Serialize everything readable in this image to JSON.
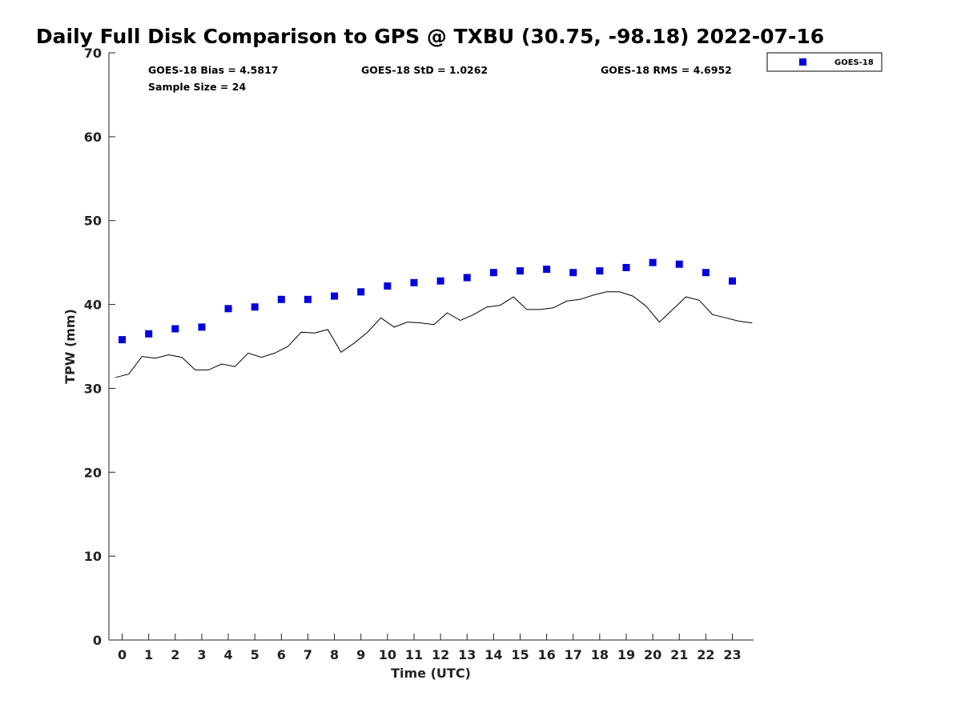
{
  "chart_data": {
    "type": "scatter",
    "title": "Daily Full Disk Comparison to GPS @ TXBU (30.75, -98.18) 2022-07-16",
    "xlabel": "Time (UTC)",
    "ylabel": "TPW (mm)",
    "xlim": [
      -0.5,
      23.8
    ],
    "ylim": [
      0,
      70
    ],
    "x_ticks": [
      "0",
      "1",
      "2",
      "3",
      "4",
      "5",
      "6",
      "7",
      "8",
      "9",
      "10",
      "11",
      "12",
      "13",
      "14",
      "15",
      "16",
      "17",
      "18",
      "19",
      "20",
      "21",
      "22",
      "23"
    ],
    "y_ticks": [
      "0",
      "10",
      "20",
      "30",
      "40",
      "50",
      "60",
      "70"
    ],
    "grid": false,
    "legend_position": "outside-top-right",
    "stats": {
      "bias": "GOES-18 Bias = 4.5817",
      "std": "GOES-18 StD = 1.0262",
      "rms": "GOES-18 RMS = 4.6952",
      "sample": "Sample Size = 24"
    },
    "series": [
      {
        "name": "GOES-18",
        "kind": "scatter",
        "color": "#0000dd",
        "x": [
          0,
          1,
          2,
          3,
          4,
          5,
          6,
          7,
          8,
          9,
          10,
          11,
          12,
          13,
          14,
          15,
          16,
          17,
          18,
          19,
          20,
          21,
          22,
          23
        ],
        "values": [
          35.8,
          36.5,
          37.1,
          37.3,
          39.5,
          39.7,
          40.6,
          40.6,
          41.0,
          41.5,
          42.2,
          42.6,
          42.8,
          43.2,
          43.8,
          44.0,
          44.2,
          43.8,
          44.0,
          44.4,
          45.0,
          44.8,
          43.8,
          42.8
        ]
      },
      {
        "kind": "line",
        "color": "#000000",
        "x": [
          -0.25,
          0.25,
          0.75,
          1.25,
          1.75,
          2.25,
          2.75,
          3.25,
          3.75,
          4.25,
          4.75,
          5.25,
          5.75,
          6.25,
          6.75,
          7.25,
          7.75,
          8.25,
          8.75,
          9.25,
          9.75,
          10.25,
          10.75,
          11.25,
          11.75,
          12.25,
          12.75,
          13.25,
          13.75,
          14.25,
          14.75,
          15.25,
          15.75,
          16.25,
          16.75,
          17.25,
          17.75,
          18.25,
          18.75,
          19.25,
          19.75,
          20.25,
          20.75,
          21.25,
          21.75,
          22.25,
          22.75,
          23.25,
          23.75
        ],
        "values": [
          31.3,
          31.7,
          33.8,
          33.6,
          34.0,
          33.7,
          32.2,
          32.2,
          32.9,
          32.6,
          34.2,
          33.7,
          34.2,
          35.0,
          36.7,
          36.6,
          37.0,
          34.3,
          35.4,
          36.7,
          38.4,
          37.3,
          37.9,
          37.8,
          37.6,
          39.0,
          38.1,
          38.8,
          39.7,
          39.9,
          40.9,
          39.4,
          39.4,
          39.6,
          40.4,
          40.6,
          41.1,
          41.5,
          41.5,
          41.0,
          39.8,
          37.9,
          39.4,
          40.9,
          40.5,
          38.8,
          38.4,
          38.0,
          37.8
        ]
      }
    ]
  }
}
